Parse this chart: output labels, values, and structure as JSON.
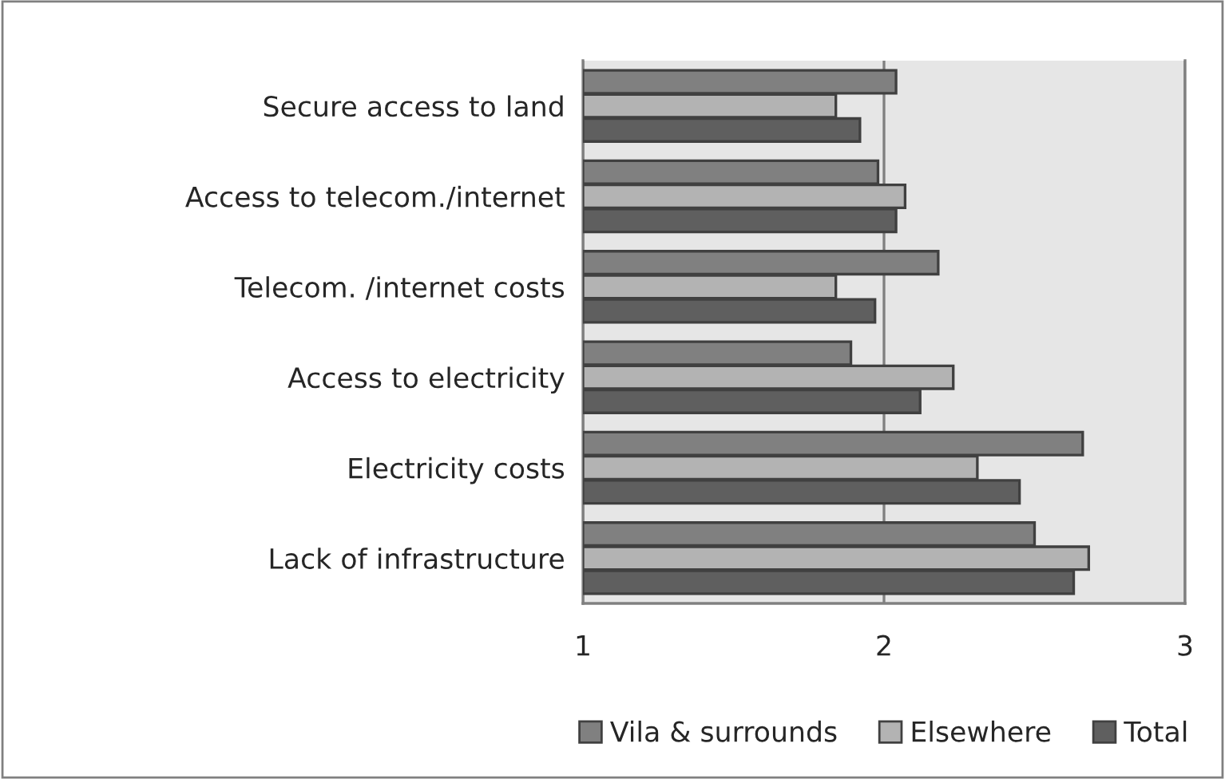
{
  "chart_data": {
    "type": "bar",
    "orientation": "horizontal",
    "categories": [
      "Secure access to land",
      "Access to telecom./internet",
      "Telecom. /internet costs",
      "Access to electricity",
      "Electricity costs",
      "Lack of infrastructure"
    ],
    "series": [
      {
        "name": "Vila & surrounds",
        "color": "#808080",
        "values": [
          2.04,
          1.98,
          2.18,
          1.89,
          2.66,
          2.5
        ]
      },
      {
        "name": "Elsewhere",
        "color": "#b3b3b3",
        "values": [
          1.84,
          2.07,
          1.84,
          2.23,
          2.31,
          2.68
        ]
      },
      {
        "name": "Total",
        "color": "#5f5f5f",
        "values": [
          1.92,
          2.04,
          1.97,
          2.12,
          2.45,
          2.63
        ]
      }
    ],
    "xlim": [
      1,
      3
    ],
    "xticks": [
      1,
      2,
      3
    ],
    "grid": "x",
    "legend": "bottom"
  }
}
